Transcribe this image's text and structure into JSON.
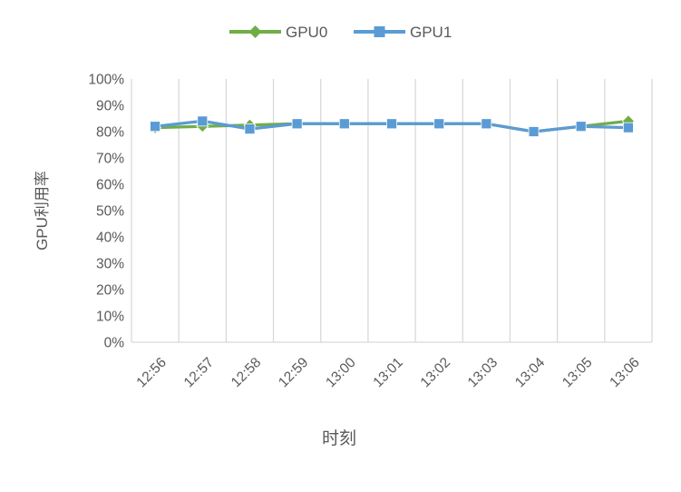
{
  "chart_data": {
    "type": "line",
    "title": "",
    "xlabel": "时刻",
    "ylabel": "GPU利用率",
    "ylim": [
      0,
      100
    ],
    "ytick_labels": [
      "0%",
      "10%",
      "20%",
      "30%",
      "40%",
      "50%",
      "60%",
      "70%",
      "80%",
      "90%",
      "100%"
    ],
    "categories": [
      "12:56",
      "12:57",
      "12:58",
      "12:59",
      "13:00",
      "13:01",
      "13:02",
      "13:03",
      "13:04",
      "13:05",
      "13:06"
    ],
    "series": [
      {
        "name": "GPU0",
        "marker": "diamond",
        "color": "#70AD47",
        "values": [
          81.5,
          82,
          82.5,
          83,
          83,
          83,
          83,
          83,
          80,
          82,
          84
        ]
      },
      {
        "name": "GPU1",
        "marker": "square",
        "color": "#5B9BD5",
        "values": [
          82,
          84,
          81,
          83,
          83,
          83,
          83,
          83,
          80,
          82,
          81.5
        ]
      }
    ],
    "legend_position": "top",
    "grid": "vertical-only",
    "colors": {
      "gridline": "#D9D9D9",
      "axis_line": "#D9D9D9",
      "tick_text": "#595959",
      "axis_title_text": "#595959",
      "legend_text": "#595959",
      "background": "#FFFFFF"
    }
  }
}
